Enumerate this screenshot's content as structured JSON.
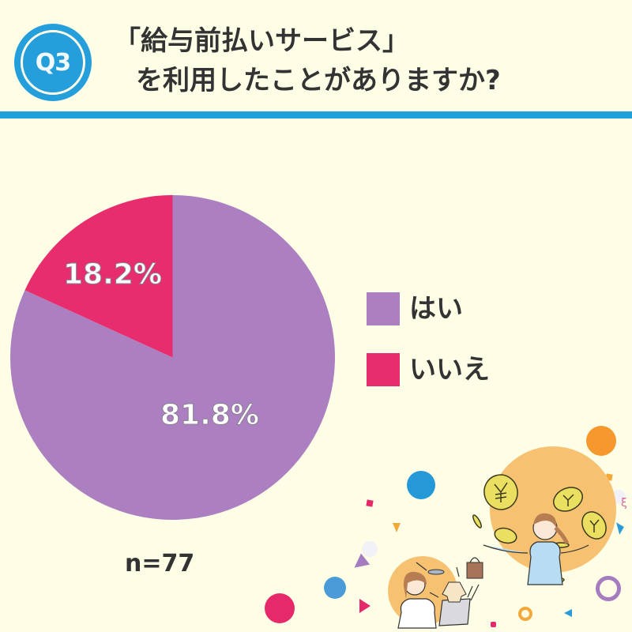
{
  "header": {
    "badge": "Q3",
    "title_line1": "「給与前払いサービス」",
    "title_line2": "を利用したことがありますか?"
  },
  "colors": {
    "background": "#FEFDE6",
    "accent_blue": "#1FA2DC",
    "yes": "#AB7FC0",
    "no": "#E72D6E",
    "text": "#333333"
  },
  "legend": {
    "items": [
      {
        "label": "はい",
        "color": "#AB7FC0"
      },
      {
        "label": "いいえ",
        "color": "#E72D6E"
      }
    ]
  },
  "pie": {
    "labels": {
      "yes": "81.8%",
      "no": "18.2%"
    }
  },
  "footer": {
    "sample_size": "n=77"
  },
  "chart_data": {
    "type": "pie",
    "title": "「給与前払いサービス」を利用したことがありますか?",
    "categories": [
      "はい",
      "いいえ"
    ],
    "values": [
      81.8,
      18.2
    ],
    "unit": "%",
    "colors": [
      "#AB7FC0",
      "#E72D6E"
    ],
    "data_labels": [
      "81.8%",
      "18.2%"
    ],
    "start_angle": "12 o'clock, clockwise (はい first)",
    "legend_position": "right",
    "sample_size": 77,
    "annotation": "n=77"
  },
  "illustration": {
    "description": "Two women with yen coins, shopping bag, clothes, laptop; confetti shapes"
  }
}
